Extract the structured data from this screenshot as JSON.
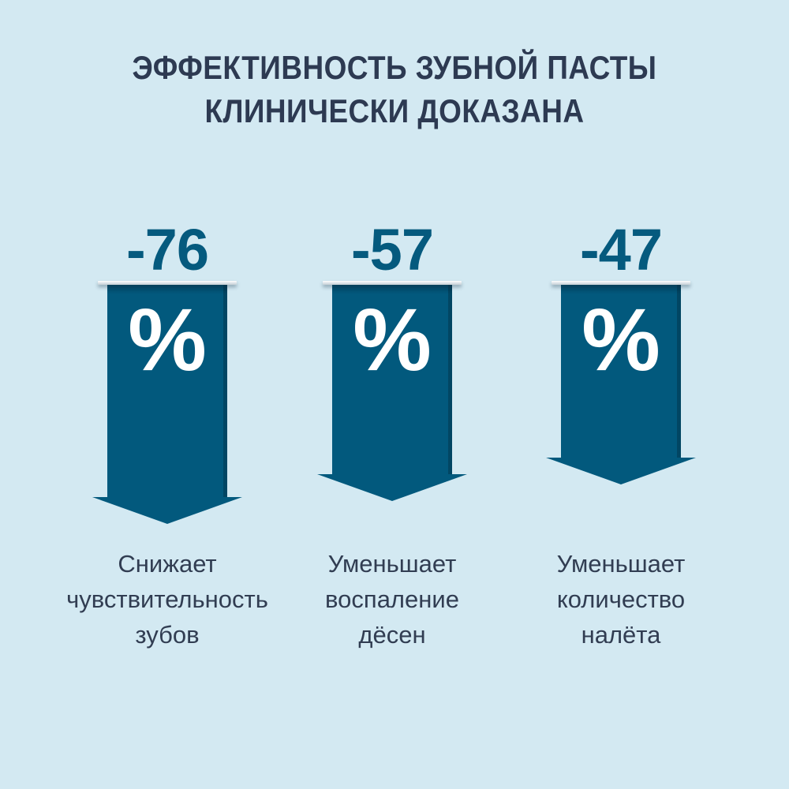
{
  "title": {
    "line1": "ЭФФЕКТИВНОСТЬ ЗУБНОЙ ПАСТЫ",
    "line2": "КЛИНИЧЕСКИ ДОКАЗАНА"
  },
  "stats": [
    {
      "value": "-76",
      "unit": "%",
      "label": "Снижает\nчувствительность\nзубов"
    },
    {
      "value": "-57",
      "unit": "%",
      "label": "Уменьшает\nвоспаление\nдёсен"
    },
    {
      "value": "-47",
      "unit": "%",
      "label": "Уменьшает\nколичество\nналёта"
    }
  ],
  "colors": {
    "background": "#d3e9f2",
    "arrow": "#02597d",
    "value_text": "#055a7e",
    "title_text": "#2d3a52",
    "label_text": "#313d52",
    "percent_sign": "#ffffff"
  },
  "chart_data": {
    "type": "bar",
    "title": "ЭФФЕКТИВНОСТЬ ЗУБНОЙ ПАСТЫ КЛИНИЧЕСКИ ДОКАЗАНА",
    "categories": [
      "Снижает чувствительность зубов",
      "Уменьшает воспаление дёсен",
      "Уменьшает количество налёта"
    ],
    "values": [
      -76,
      -57,
      -47
    ],
    "unit": "%",
    "orientation": "downward-arrows",
    "bar_color": "#02597d",
    "background_color": "#d3e9f2",
    "legend": "none",
    "grid": false
  }
}
